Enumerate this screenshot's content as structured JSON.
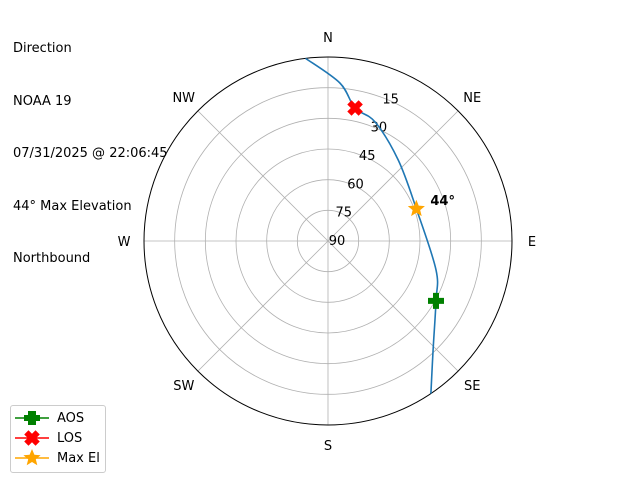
{
  "title_lines": [
    "Direction",
    "NOAA 19",
    "07/31/2025 @ 22:06:45",
    "44° Max Elevation",
    "Northbound"
  ],
  "chart_data": {
    "type": "polar-line",
    "theta_direction": "clockwise",
    "theta_zero": "N",
    "angular_labels": [
      "N",
      "NE",
      "E",
      "SE",
      "S",
      "SW",
      "W",
      "NW"
    ],
    "radial_ticks": [
      90,
      75,
      60,
      45,
      30,
      15
    ],
    "radial_range": [
      90,
      0
    ],
    "grid": true,
    "track": {
      "color": "#1f77b4",
      "points": [
        {
          "az": 146,
          "el": 0
        },
        {
          "az": 136,
          "el": 16
        },
        {
          "az": 119,
          "el": 29.6
        },
        {
          "az": 105,
          "el": 35.3
        },
        {
          "az": 70,
          "el": 44
        },
        {
          "az": 41,
          "el": 37.6
        },
        {
          "az": 21.6,
          "el": 27.4
        },
        {
          "az": 11.5,
          "el": 23.6
        },
        {
          "az": 4.3,
          "el": 12.5
        },
        {
          "az": 353,
          "el": 0
        }
      ]
    },
    "markers": [
      {
        "name": "AOS",
        "az": 119,
        "el": 29.6,
        "color": "#008000",
        "shape": "plus"
      },
      {
        "name": "LOS",
        "az": 11.5,
        "el": 23.6,
        "color": "#ff0000",
        "shape": "x"
      },
      {
        "name": "Max El",
        "az": 70,
        "el": 44,
        "color": "#ffa500",
        "shape": "star"
      }
    ],
    "annotation": {
      "text": "44°",
      "az": 70,
      "el": 44
    },
    "legend": {
      "placement": "lower-left",
      "entries": [
        "AOS",
        "LOS",
        "Max El"
      ]
    }
  }
}
